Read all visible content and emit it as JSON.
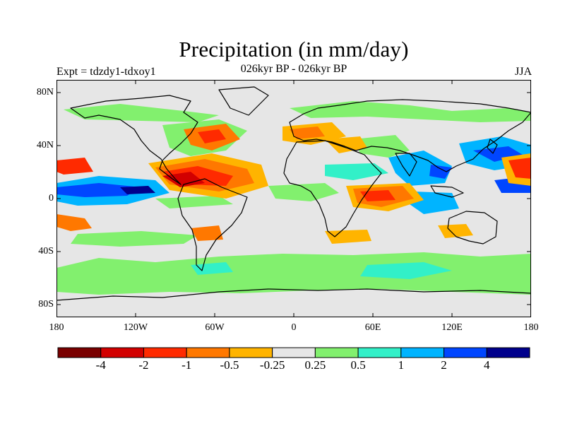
{
  "title": "Precipitation (in mm/day)",
  "subtitle": "026kyr BP - 026kyr BP",
  "left_label": "Expt = tdzdy1-tdxoy1",
  "right_label": "JJA",
  "y_ticks": [
    "80N",
    "40N",
    "0",
    "40S",
    "80S"
  ],
  "x_ticks": [
    "180",
    "120W",
    "60W",
    "0",
    "60E",
    "120E",
    "180"
  ],
  "colorbar": {
    "colors": [
      "#7a0000",
      "#d20000",
      "#ff2a00",
      "#ff7800",
      "#ffb400",
      "#e6e6e6",
      "#82f06e",
      "#32f0c8",
      "#00b4ff",
      "#0046ff",
      "#00008c"
    ],
    "labels": [
      "-4",
      "-2",
      "-1",
      "-0.5",
      "-0.25",
      "0.25",
      "0.5",
      "1",
      "2",
      "4"
    ]
  },
  "chart_data": {
    "type": "heatmap",
    "title": "Precipitation (in mm/day)",
    "subtitle": "026kyr BP - 026kyr BP",
    "variable": "precipitation difference",
    "units": "mm/day",
    "season": "JJA",
    "experiment": "tdzdy1-tdxoy1",
    "x_range": [
      -180,
      180
    ],
    "y_range": [
      -90,
      90
    ],
    "levels": [
      -4,
      -2,
      -1,
      -0.5,
      -0.25,
      0.25,
      0.5,
      1,
      2,
      4
    ]
  }
}
